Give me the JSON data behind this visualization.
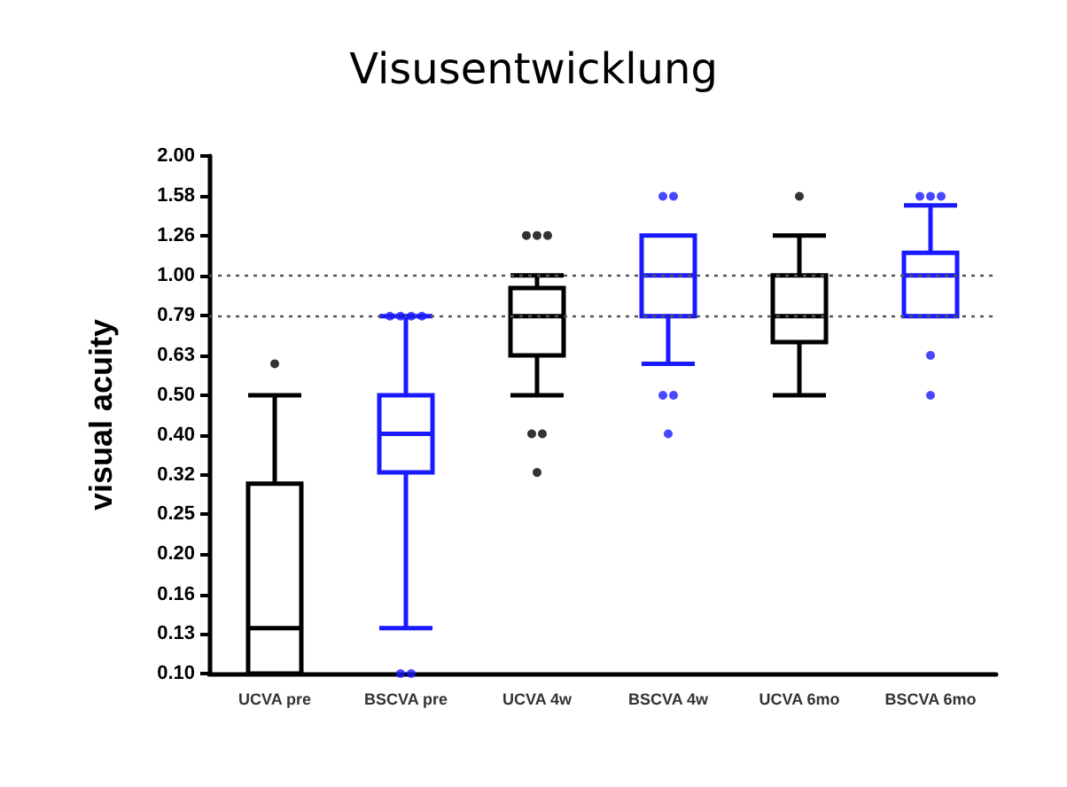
{
  "chart_data": {
    "type": "box",
    "title": "Visusentwicklung",
    "ylabel": "visual acuity",
    "categories": [
      "UCVA pre",
      "BSCVA pre",
      "UCVA 4w",
      "BSCVA 4w",
      "UCVA 6mo",
      "BSCVA 6mo"
    ],
    "colors": [
      "#000000",
      "#1a1aff",
      "#000000",
      "#1a1aff",
      "#000000",
      "#1a1aff"
    ],
    "boxes": [
      {
        "low": 0.1,
        "q1": 0.1,
        "median": 0.13,
        "q3": 0.3,
        "high": 0.5,
        "outliers": [
          0.6
        ]
      },
      {
        "low": 0.13,
        "q1": 0.32,
        "median": 0.4,
        "q3": 0.5,
        "high": 0.79,
        "outliers": [
          0.79,
          0.79,
          0.79,
          0.79,
          0.1,
          0.1
        ]
      },
      {
        "low": 0.5,
        "q1": 0.63,
        "median": 0.79,
        "q3": 0.93,
        "high": 1.0,
        "outliers": [
          1.26,
          1.26,
          1.26,
          0.4,
          0.4,
          0.32
        ]
      },
      {
        "low": 0.6,
        "q1": 0.79,
        "median": 1.0,
        "q3": 1.26,
        "high": 1.26,
        "outliers": [
          1.58,
          1.58,
          0.5,
          0.5,
          0.4
        ]
      },
      {
        "low": 0.5,
        "q1": 0.68,
        "median": 0.79,
        "q3": 1.0,
        "high": 1.26,
        "outliers": [
          1.58
        ]
      },
      {
        "low": 0.79,
        "q1": 0.79,
        "median": 1.0,
        "q3": 1.14,
        "high": 1.5,
        "outliers": [
          1.58,
          1.58,
          1.58,
          0.63,
          0.5
        ]
      }
    ],
    "log": "y",
    "ylim": [
      0.1,
      1.995
    ],
    "yticks": [
      {
        "value": 0.1,
        "label": "0.10"
      },
      {
        "value": 0.126,
        "label": "0.13"
      },
      {
        "value": 0.158,
        "label": "0.16"
      },
      {
        "value": 0.1995,
        "label": "0.20"
      },
      {
        "value": 0.251,
        "label": "0.25"
      },
      {
        "value": 0.316,
        "label": "0.32"
      },
      {
        "value": 0.398,
        "label": "0.40"
      },
      {
        "value": 0.501,
        "label": "0.50"
      },
      {
        "value": 0.631,
        "label": "0.63"
      },
      {
        "value": 0.794,
        "label": "0.79"
      },
      {
        "value": 1.0,
        "label": "1.00"
      },
      {
        "value": 1.259,
        "label": "1.26"
      },
      {
        "value": 1.585,
        "label": "1.58"
      },
      {
        "value": 1.995,
        "label": "2.00"
      }
    ],
    "ref_lines": [
      {
        "axis": "y",
        "value": 1.0,
        "line_style": "dotted",
        "color": "#555555"
      },
      {
        "axis": "y",
        "value": 0.794,
        "line_style": "dotted",
        "color": "#555555"
      }
    ],
    "grid": false
  }
}
